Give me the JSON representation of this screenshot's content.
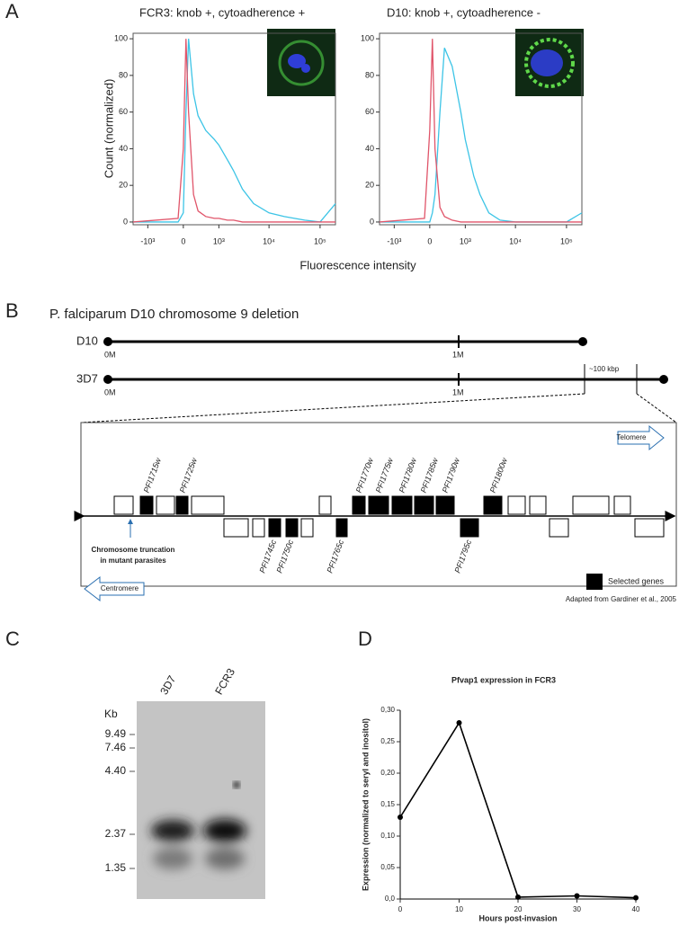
{
  "panel_labels": [
    "A",
    "B",
    "C",
    "D"
  ],
  "diagram": {
    "title": "P. falciparum D10 chromosome 9 deletion",
    "strain_top": "D10",
    "strain_bottom": "3D7",
    "start_top": "0M",
    "mid_top": "1M",
    "start_bottom": "0M",
    "mid_bottom": "1M",
    "region": "~100 kbp",
    "telomere": "Telomere",
    "centromere": "Centromere",
    "genes_top": [
      "PFI1715w",
      "PFI1725w",
      "PFI1770w",
      "PFI1775w",
      "PFI1780w",
      "PFI1785w",
      "PFI1790w",
      "PFI1800w"
    ],
    "genes_bottom": [
      "PFI1745c",
      "PFI1750c",
      "PFI1765c",
      "PFI1795c"
    ],
    "truncation": [
      "Chromosome truncation",
      "in mutant parasites"
    ],
    "legend": "Selected genes",
    "source": "Adapted from Gardiner et al., 2005"
  },
  "gel": {
    "unit": "Kb",
    "markers": [
      "9.49",
      "7.46",
      "4.40",
      "2.37",
      "1.35"
    ],
    "lanes": [
      "3D7",
      "FCR3"
    ]
  },
  "chart_data": [
    {
      "type": "line",
      "title": "FCR3: knob +, cytoadherence +",
      "ylabel": "Count (normalized)",
      "xlabel": "Fluorescence intensity",
      "xscale": "biexponential",
      "x": [
        -2000,
        -100,
        0,
        50,
        100,
        200,
        300,
        500,
        800,
        1000,
        1500,
        2000,
        3000,
        5000,
        10000,
        20000,
        50000,
        100000,
        200000
      ],
      "series": [
        {
          "color": "#3cc4e6",
          "values": [
            0,
            0,
            5,
            60,
            100,
            70,
            58,
            50,
            45,
            42,
            34,
            28,
            18,
            10,
            5,
            3,
            1,
            0,
            10
          ]
        },
        {
          "color": "#e0556a",
          "values": [
            0,
            2,
            40,
            100,
            60,
            15,
            6,
            3,
            2,
            2,
            1,
            1,
            0,
            0,
            0,
            0,
            0,
            0,
            0
          ]
        }
      ],
      "xlim": [
        -2000,
        200000
      ],
      "xticks": [
        {
          "value": -1000,
          "label": "-10³"
        },
        0,
        {
          "value": 1000,
          "label": "10³"
        },
        {
          "value": 10000,
          "label": "10⁴"
        },
        {
          "value": 100000,
          "label": "10⁵"
        }
      ],
      "ylim": [
        -1.5,
        103
      ],
      "yticks": [
        0,
        20,
        40,
        60,
        80,
        100
      ]
    },
    {
      "type": "line",
      "title": "D10: knob +, cytoadherence -",
      "xscale": "biexponential",
      "x": [
        -2000,
        -100,
        0,
        50,
        100,
        200,
        300,
        500,
        800,
        1000,
        1500,
        2000,
        3000,
        5000,
        10000,
        20000,
        50000,
        100000,
        200000
      ],
      "series": [
        {
          "color": "#3cc4e6",
          "values": [
            0,
            0,
            0,
            5,
            15,
            60,
            95,
            85,
            60,
            45,
            25,
            15,
            5,
            1,
            0,
            0,
            0,
            0,
            5
          ]
        },
        {
          "color": "#e0556a",
          "values": [
            0,
            2,
            50,
            100,
            40,
            8,
            3,
            1,
            0,
            0,
            0,
            0,
            0,
            0,
            0,
            0,
            0,
            0,
            0
          ]
        }
      ],
      "xlim": [
        -2000,
        200000
      ],
      "xticks": [
        {
          "value": -1000,
          "label": "-10³"
        },
        0,
        {
          "value": 1000,
          "label": "10³"
        },
        {
          "value": 10000,
          "label": "10⁴"
        },
        {
          "value": 100000,
          "label": "10⁵"
        }
      ],
      "ylim": [
        -1.5,
        103
      ],
      "yticks": [
        0,
        20,
        40,
        60,
        80,
        100
      ]
    },
    {
      "type": "line",
      "title": "Pfvap1 expression in FCR3",
      "xlabel": "Hours post-invasion",
      "ylabel": "Expression (normalized to seryl and inositol)",
      "x": [
        0,
        10,
        20,
        30,
        40
      ],
      "series": [
        {
          "color": "#000000",
          "values": [
            0.13,
            0.28,
            0.003,
            0.005,
            0.002
          ]
        }
      ],
      "xlim": [
        0,
        40
      ],
      "xticks": [
        0,
        10,
        20,
        30,
        40
      ],
      "ylim": [
        0,
        0.3
      ],
      "yticks": [
        {
          "value": 0,
          "label": "0,0"
        },
        {
          "value": 0.05,
          "label": "0,05"
        },
        {
          "value": 0.1,
          "label": "0,10"
        },
        {
          "value": 0.15,
          "label": "0,15"
        },
        {
          "value": 0.2,
          "label": "0,20"
        },
        {
          "value": 0.25,
          "label": "0,25"
        },
        {
          "value": 0.3,
          "label": "0,30"
        }
      ]
    }
  ]
}
